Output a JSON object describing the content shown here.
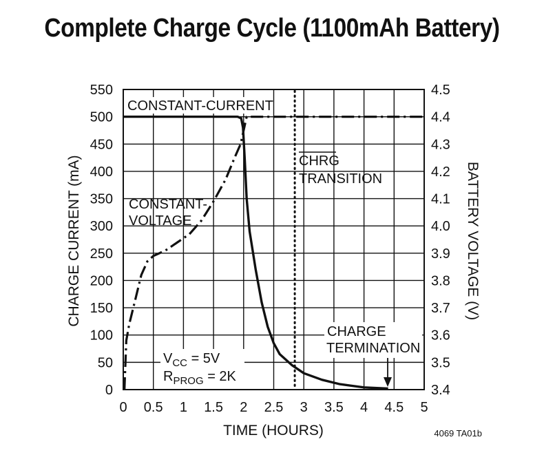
{
  "chart_data": {
    "type": "line",
    "title": "Complete Charge Cycle (1100mAh Battery)",
    "xlabel": "TIME (HOURS)",
    "ylabel": "CHARGE CURRENT (mA)",
    "y2label": "BATTERY VOLTAGE (V)",
    "xlim": [
      0,
      5
    ],
    "ylim": [
      0,
      550
    ],
    "y2lim": [
      3.4,
      4.5
    ],
    "grid": true,
    "x_ticks": [
      "0",
      "0.5",
      "1",
      "1.5",
      "2",
      "2.5",
      "3",
      "3.5",
      "4",
      "4.5",
      "5"
    ],
    "y_ticks": [
      "0",
      "50",
      "100",
      "150",
      "200",
      "250",
      "300",
      "350",
      "400",
      "450",
      "500",
      "550"
    ],
    "y2_ticks": [
      "3.4",
      "3.5",
      "3.6",
      "3.7",
      "3.8",
      "3.9",
      "4.0",
      "4.1",
      "4.2",
      "4.3",
      "4.4",
      "4.5"
    ],
    "series": [
      {
        "axis": "left",
        "style": "solid",
        "x": [
          0,
          0.5,
          1.0,
          1.5,
          1.9,
          1.96,
          1.99,
          2.02,
          2.05,
          2.1,
          2.2,
          2.3,
          2.4,
          2.5,
          2.6,
          2.8,
          3.0,
          3.3,
          3.6,
          4.0,
          4.4
        ],
        "y": [
          500,
          500,
          500,
          500,
          500,
          497,
          480,
          420,
          350,
          290,
          220,
          160,
          115,
          85,
          65,
          45,
          30,
          18,
          10,
          4,
          2
        ]
      },
      {
        "axis": "right",
        "style": "dash-dot",
        "x": [
          0.02,
          0.05,
          0.1,
          0.2,
          0.3,
          0.4,
          0.5,
          0.7,
          0.9,
          1.1,
          1.3,
          1.5,
          1.7,
          1.85,
          1.95,
          2.05,
          2.5,
          5.0
        ],
        "y": [
          3.4,
          3.58,
          3.64,
          3.73,
          3.82,
          3.87,
          3.89,
          3.91,
          3.94,
          3.97,
          4.02,
          4.09,
          4.17,
          4.25,
          4.3,
          4.4,
          4.4,
          4.4
        ]
      }
    ],
    "transition_x": 2.85,
    "annotations": {
      "constant_current": "CONSTANT-CURRENT",
      "constant_voltage_1": "CONSTANT-",
      "constant_voltage_2": "VOLTAGE",
      "chrg": "CHRG",
      "transition": "TRANSITION",
      "charge": "CHARGE",
      "termination": "TERMINATION",
      "vcc_main": "V",
      "vcc_sub": "CC",
      "vcc_val": " = 5V",
      "rprog_main": "R",
      "rprog_sub": "PROG",
      "rprog_val": " = 2K"
    },
    "figure_code": "4069 TA01b"
  }
}
